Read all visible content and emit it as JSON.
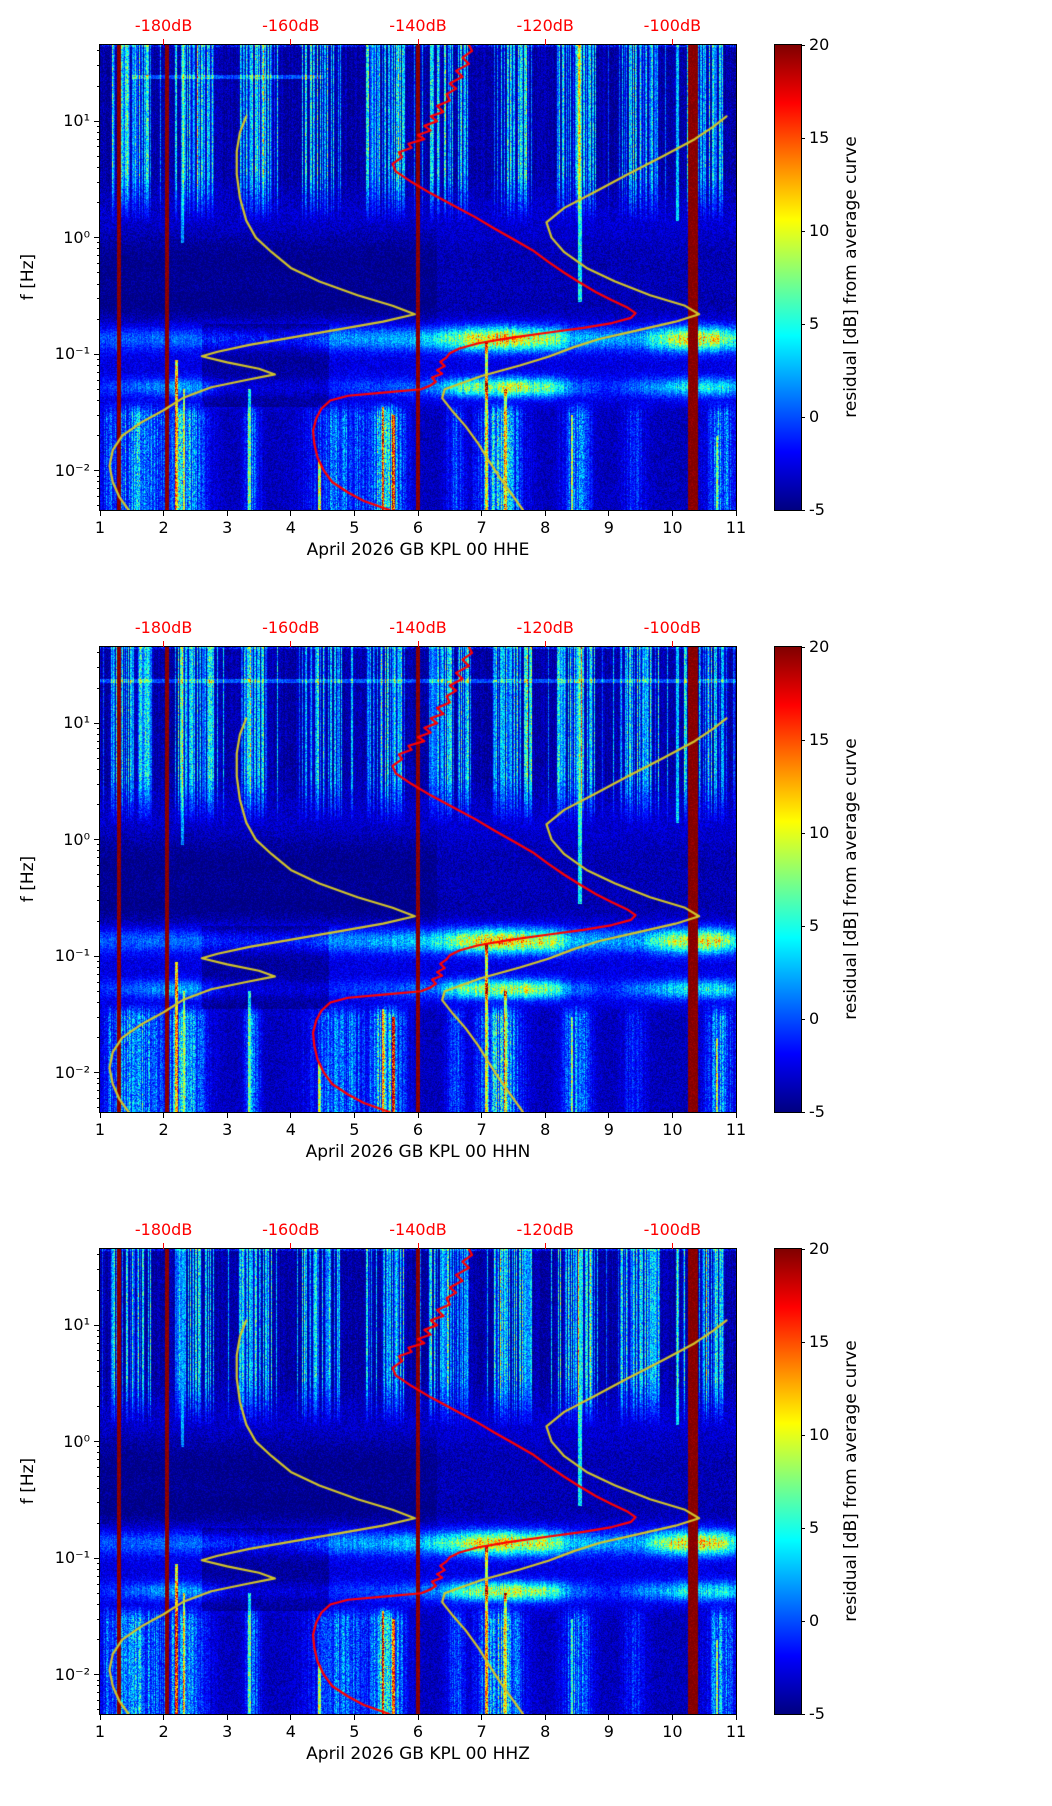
{
  "chart_data": [
    {
      "type": "heatmap",
      "subtype": "spectrogram",
      "xlabel": "April 2026 GB KPL 00 HHE",
      "ylabel": "f [Hz]",
      "xlim": [
        1,
        11
      ],
      "xticks": [
        1,
        2,
        3,
        4,
        5,
        6,
        7,
        8,
        9,
        10,
        11
      ],
      "yscale": "log",
      "ylim": [
        0.0046,
        45
      ],
      "ytick_values": [
        0.01,
        0.1,
        1,
        10
      ],
      "ytick_labels": [
        "10⁻²",
        "10⁻¹",
        "10⁰",
        "10¹"
      ],
      "top_axis": {
        "color": "#ff0000",
        "positions": [
          2,
          4,
          6,
          8,
          10
        ],
        "labels": [
          "-180dB",
          "-160dB",
          "-140dB",
          "-120dB",
          "-100dB"
        ]
      },
      "colorbar": {
        "label": "residual [dB] from average curve",
        "min": -5,
        "max": 20,
        "ticks": [
          20,
          15,
          10,
          5,
          0,
          -5
        ],
        "colormap": "jet"
      },
      "gap_stripes_x": [
        [
          1.3,
          0.07
        ],
        [
          2.05,
          0.07
        ],
        [
          6.0,
          0.07
        ],
        [
          10.33,
          0.16
        ]
      ],
      "hlines": [
        [
          24,
          1.5,
          4.5,
          4.5
        ]
      ],
      "seed": 7
    },
    {
      "type": "heatmap",
      "subtype": "spectrogram",
      "xlabel": "April 2026 GB KPL 00 HHN",
      "ylabel": "f [Hz]",
      "xlim": [
        1,
        11
      ],
      "xticks": [
        1,
        2,
        3,
        4,
        5,
        6,
        7,
        8,
        9,
        10,
        11
      ],
      "yscale": "log",
      "ylim": [
        0.0046,
        45
      ],
      "ytick_values": [
        0.01,
        0.1,
        1,
        10
      ],
      "ytick_labels": [
        "10⁻²",
        "10⁻¹",
        "10⁰",
        "10¹"
      ],
      "top_axis": {
        "color": "#ff0000",
        "positions": [
          2,
          4,
          6,
          8,
          10
        ],
        "labels": [
          "-180dB",
          "-160dB",
          "-140dB",
          "-120dB",
          "-100dB"
        ]
      },
      "colorbar": {
        "label": "residual [dB] from average curve",
        "min": -5,
        "max": 20,
        "ticks": [
          20,
          15,
          10,
          5,
          0,
          -5
        ],
        "colormap": "jet"
      },
      "gap_stripes_x": [
        [
          1.3,
          0.07
        ],
        [
          2.05,
          0.07
        ],
        [
          6.0,
          0.07
        ],
        [
          10.33,
          0.16
        ]
      ],
      "hlines": [
        [
          23,
          1.0,
          11,
          4.5
        ]
      ],
      "seed": 13
    },
    {
      "type": "heatmap",
      "subtype": "spectrogram",
      "xlabel": "April 2026 GB KPL 00 HHZ",
      "ylabel": "f [Hz]",
      "xlim": [
        1,
        11
      ],
      "xticks": [
        1,
        2,
        3,
        4,
        5,
        6,
        7,
        8,
        9,
        10,
        11
      ],
      "yscale": "log",
      "ylim": [
        0.0046,
        45
      ],
      "ytick_values": [
        0.01,
        0.1,
        1,
        10
      ],
      "ytick_labels": [
        "10⁻²",
        "10⁻¹",
        "10⁰",
        "10¹"
      ],
      "top_axis": {
        "color": "#ff0000",
        "positions": [
          2,
          4,
          6,
          8,
          10
        ],
        "labels": [
          "-180dB",
          "-160dB",
          "-140dB",
          "-120dB",
          "-100dB"
        ]
      },
      "colorbar": {
        "label": "residual [dB] from average curve",
        "min": -5,
        "max": 20,
        "ticks": [
          20,
          15,
          10,
          5,
          0,
          -5
        ],
        "colormap": "jet"
      },
      "gap_stripes_x": [
        [
          1.3,
          0.07
        ],
        [
          2.05,
          0.07
        ],
        [
          6.0,
          0.07
        ],
        [
          10.33,
          0.16
        ]
      ],
      "hlines": [],
      "seed": 29
    }
  ],
  "overlay_curves": {
    "applies_to_panels": [
      0,
      1,
      2
    ],
    "db_to_x_mapping": "x = (dB + 220) / 10",
    "average_psd": {
      "color": "#ff0000",
      "points_f_x": [
        [
          0.0046,
          5.55
        ],
        [
          0.0055,
          5.15
        ],
        [
          0.0065,
          4.9
        ],
        [
          0.008,
          4.65
        ],
        [
          0.01,
          4.52
        ],
        [
          0.013,
          4.42
        ],
        [
          0.017,
          4.37
        ],
        [
          0.022,
          4.35
        ],
        [
          0.028,
          4.4
        ],
        [
          0.034,
          4.48
        ],
        [
          0.04,
          4.62
        ],
        [
          0.044,
          4.9
        ],
        [
          0.047,
          5.5
        ],
        [
          0.05,
          6.05
        ],
        [
          0.054,
          6.2
        ],
        [
          0.058,
          6.28
        ],
        [
          0.063,
          6.22
        ],
        [
          0.068,
          6.38
        ],
        [
          0.073,
          6.3
        ],
        [
          0.079,
          6.42
        ],
        [
          0.086,
          6.35
        ],
        [
          0.094,
          6.45
        ],
        [
          0.102,
          6.5
        ],
        [
          0.112,
          6.65
        ],
        [
          0.124,
          6.95
        ],
        [
          0.138,
          7.45
        ],
        [
          0.152,
          8.0
        ],
        [
          0.168,
          8.6
        ],
        [
          0.185,
          9.05
        ],
        [
          0.205,
          9.35
        ],
        [
          0.225,
          9.42
        ],
        [
          0.25,
          9.3
        ],
        [
          0.29,
          9.05
        ],
        [
          0.34,
          8.8
        ],
        [
          0.41,
          8.55
        ],
        [
          0.5,
          8.3
        ],
        [
          0.62,
          8.05
        ],
        [
          0.78,
          7.8
        ],
        [
          0.97,
          7.5
        ],
        [
          1.2,
          7.2
        ],
        [
          1.5,
          6.9
        ],
        [
          1.9,
          6.55
        ],
        [
          2.4,
          6.2
        ],
        [
          3.0,
          5.9
        ],
        [
          3.7,
          5.65
        ],
        [
          4.3,
          5.6
        ],
        [
          4.9,
          5.75
        ],
        [
          5.4,
          5.7
        ],
        [
          5.9,
          5.9
        ],
        [
          6.4,
          5.85
        ],
        [
          7.0,
          6.1
        ],
        [
          7.6,
          6.0
        ],
        [
          8.3,
          6.2
        ],
        [
          9.1,
          6.1
        ],
        [
          10,
          6.3
        ],
        [
          11,
          6.2
        ],
        [
          12,
          6.4
        ],
        [
          13.5,
          6.3
        ],
        [
          15,
          6.5
        ],
        [
          17,
          6.45
        ],
        [
          19,
          6.6
        ],
        [
          21,
          6.5
        ],
        [
          24,
          6.7
        ],
        [
          27,
          6.6
        ],
        [
          31,
          6.8
        ],
        [
          35,
          6.7
        ],
        [
          40,
          6.85
        ],
        [
          45,
          6.8
        ]
      ]
    },
    "noise_model_low": {
      "color": "#d2c42a",
      "points_f_x": [
        [
          0.0046,
          1.45
        ],
        [
          0.006,
          1.3
        ],
        [
          0.008,
          1.2
        ],
        [
          0.011,
          1.15
        ],
        [
          0.015,
          1.2
        ],
        [
          0.02,
          1.35
        ],
        [
          0.026,
          1.65
        ],
        [
          0.033,
          2.0
        ],
        [
          0.042,
          2.3
        ],
        [
          0.052,
          2.75
        ],
        [
          0.06,
          3.3
        ],
        [
          0.067,
          3.75
        ],
        [
          0.075,
          3.5
        ],
        [
          0.085,
          3.0
        ],
        [
          0.096,
          2.6
        ],
        [
          0.105,
          2.85
        ],
        [
          0.12,
          3.35
        ],
        [
          0.14,
          4.05
        ],
        [
          0.165,
          4.8
        ],
        [
          0.19,
          5.45
        ],
        [
          0.22,
          5.95
        ],
        [
          0.26,
          5.6
        ],
        [
          0.32,
          5.05
        ],
        [
          0.42,
          4.45
        ],
        [
          0.55,
          4.0
        ],
        [
          0.75,
          3.7
        ],
        [
          1.0,
          3.45
        ],
        [
          1.4,
          3.3
        ],
        [
          2.2,
          3.2
        ],
        [
          3.5,
          3.15
        ],
        [
          5.5,
          3.15
        ],
        [
          8,
          3.2
        ],
        [
          11,
          3.3
        ]
      ]
    },
    "noise_model_high": {
      "color": "#d2c42a",
      "points_f_x": [
        [
          0.0046,
          7.65
        ],
        [
          0.006,
          7.5
        ],
        [
          0.0085,
          7.3
        ],
        [
          0.012,
          7.12
        ],
        [
          0.017,
          6.95
        ],
        [
          0.024,
          6.75
        ],
        [
          0.032,
          6.55
        ],
        [
          0.042,
          6.38
        ],
        [
          0.05,
          6.42
        ],
        [
          0.065,
          7.0
        ],
        [
          0.08,
          7.6
        ],
        [
          0.095,
          8.05
        ],
        [
          0.115,
          8.45
        ],
        [
          0.135,
          8.85
        ],
        [
          0.16,
          9.45
        ],
        [
          0.19,
          10.05
        ],
        [
          0.22,
          10.42
        ],
        [
          0.26,
          10.2
        ],
        [
          0.32,
          9.65
        ],
        [
          0.42,
          9.1
        ],
        [
          0.55,
          8.65
        ],
        [
          0.75,
          8.3
        ],
        [
          1.0,
          8.1
        ],
        [
          1.35,
          8.02
        ],
        [
          1.8,
          8.3
        ],
        [
          2.5,
          8.8
        ],
        [
          3.5,
          9.3
        ],
        [
          5,
          9.85
        ],
        [
          7,
          10.35
        ],
        [
          9,
          10.65
        ],
        [
          11,
          10.85
        ]
      ]
    }
  },
  "texture": {
    "base": -2.7,
    "noise_amp": 1.3,
    "hf_band": {
      "fade_start_hz": 1.3,
      "full_hz": 3.5,
      "day_window": [
        0.18,
        0.8
      ]
    },
    "mid_dark": {
      "center_hz": 0.6,
      "sigma_log": 0.3,
      "amp": -2.1
    },
    "mid_dark2": {
      "center_hz": 0.26,
      "sigma_log": 0.16,
      "amp": -1.7
    },
    "micro_band": {
      "center_hz": 0.135,
      "sigma_log": 0.1,
      "envelope": [
        [
          1,
          3
        ],
        [
          2.5,
          3.5
        ],
        [
          4,
          2.5
        ],
        [
          4.6,
          4.5
        ],
        [
          5.5,
          5
        ],
        [
          6.2,
          6.5
        ],
        [
          6.6,
          10
        ],
        [
          6.9,
          13
        ],
        [
          7.3,
          14.5
        ],
        [
          7.8,
          12.5
        ],
        [
          8.15,
          11
        ],
        [
          8.4,
          6
        ],
        [
          9,
          4.5
        ],
        [
          9.5,
          5
        ],
        [
          9.8,
          9.5
        ],
        [
          10.1,
          12.5
        ],
        [
          10.45,
          13.5
        ],
        [
          10.7,
          12.5
        ],
        [
          11,
          7.5
        ]
      ]
    },
    "secondary_band": {
      "center_hz": 0.052,
      "sigma_log": 0.08,
      "envelope": [
        [
          1,
          1.5
        ],
        [
          1.9,
          4
        ],
        [
          2.2,
          5.5
        ],
        [
          2.6,
          4
        ],
        [
          3,
          1.5
        ],
        [
          4.5,
          1.5
        ],
        [
          5.5,
          2.5
        ],
        [
          6.3,
          4
        ],
        [
          6.6,
          8
        ],
        [
          7,
          10.5
        ],
        [
          7.5,
          11.5
        ],
        [
          8.1,
          9.5
        ],
        [
          8.45,
          3.5
        ],
        [
          9,
          1.5
        ],
        [
          9.8,
          5
        ],
        [
          10.2,
          7
        ],
        [
          10.8,
          7
        ],
        [
          11,
          5.5
        ]
      ]
    },
    "lf_region_hz": 0.04,
    "lf_clusters": [
      [
        1.15,
        0.12,
        6
      ],
      [
        1.6,
        0.45,
        9
      ],
      [
        2.3,
        0.35,
        10
      ],
      [
        3.4,
        0.12,
        7
      ],
      [
        4.8,
        0.5,
        7
      ],
      [
        5.5,
        0.28,
        12
      ],
      [
        6.6,
        0.15,
        5
      ],
      [
        7.3,
        0.33,
        11
      ],
      [
        8.5,
        0.22,
        8
      ],
      [
        9.4,
        0.18,
        4
      ],
      [
        10.75,
        0.22,
        8
      ]
    ],
    "hot_columns": [
      [
        2.2,
        0.09,
        15
      ],
      [
        2.32,
        0.05,
        11
      ],
      [
        3.35,
        0.05,
        9
      ],
      [
        4.45,
        0.012,
        11
      ],
      [
        5.45,
        0.035,
        14
      ],
      [
        5.62,
        0.03,
        16
      ],
      [
        7.08,
        0.13,
        13
      ],
      [
        7.38,
        0.05,
        11
      ],
      [
        8.42,
        0.03,
        9
      ],
      [
        10.7,
        0.02,
        9
      ]
    ],
    "tall_streaks": [
      [
        2.3,
        0.9,
        7
      ],
      [
        8.55,
        0.28,
        10
      ],
      [
        10.08,
        1.4,
        8
      ]
    ],
    "dark_patches": [
      [
        2.6,
        4.6,
        0.035,
        0.18,
        -1.6
      ]
    ]
  }
}
